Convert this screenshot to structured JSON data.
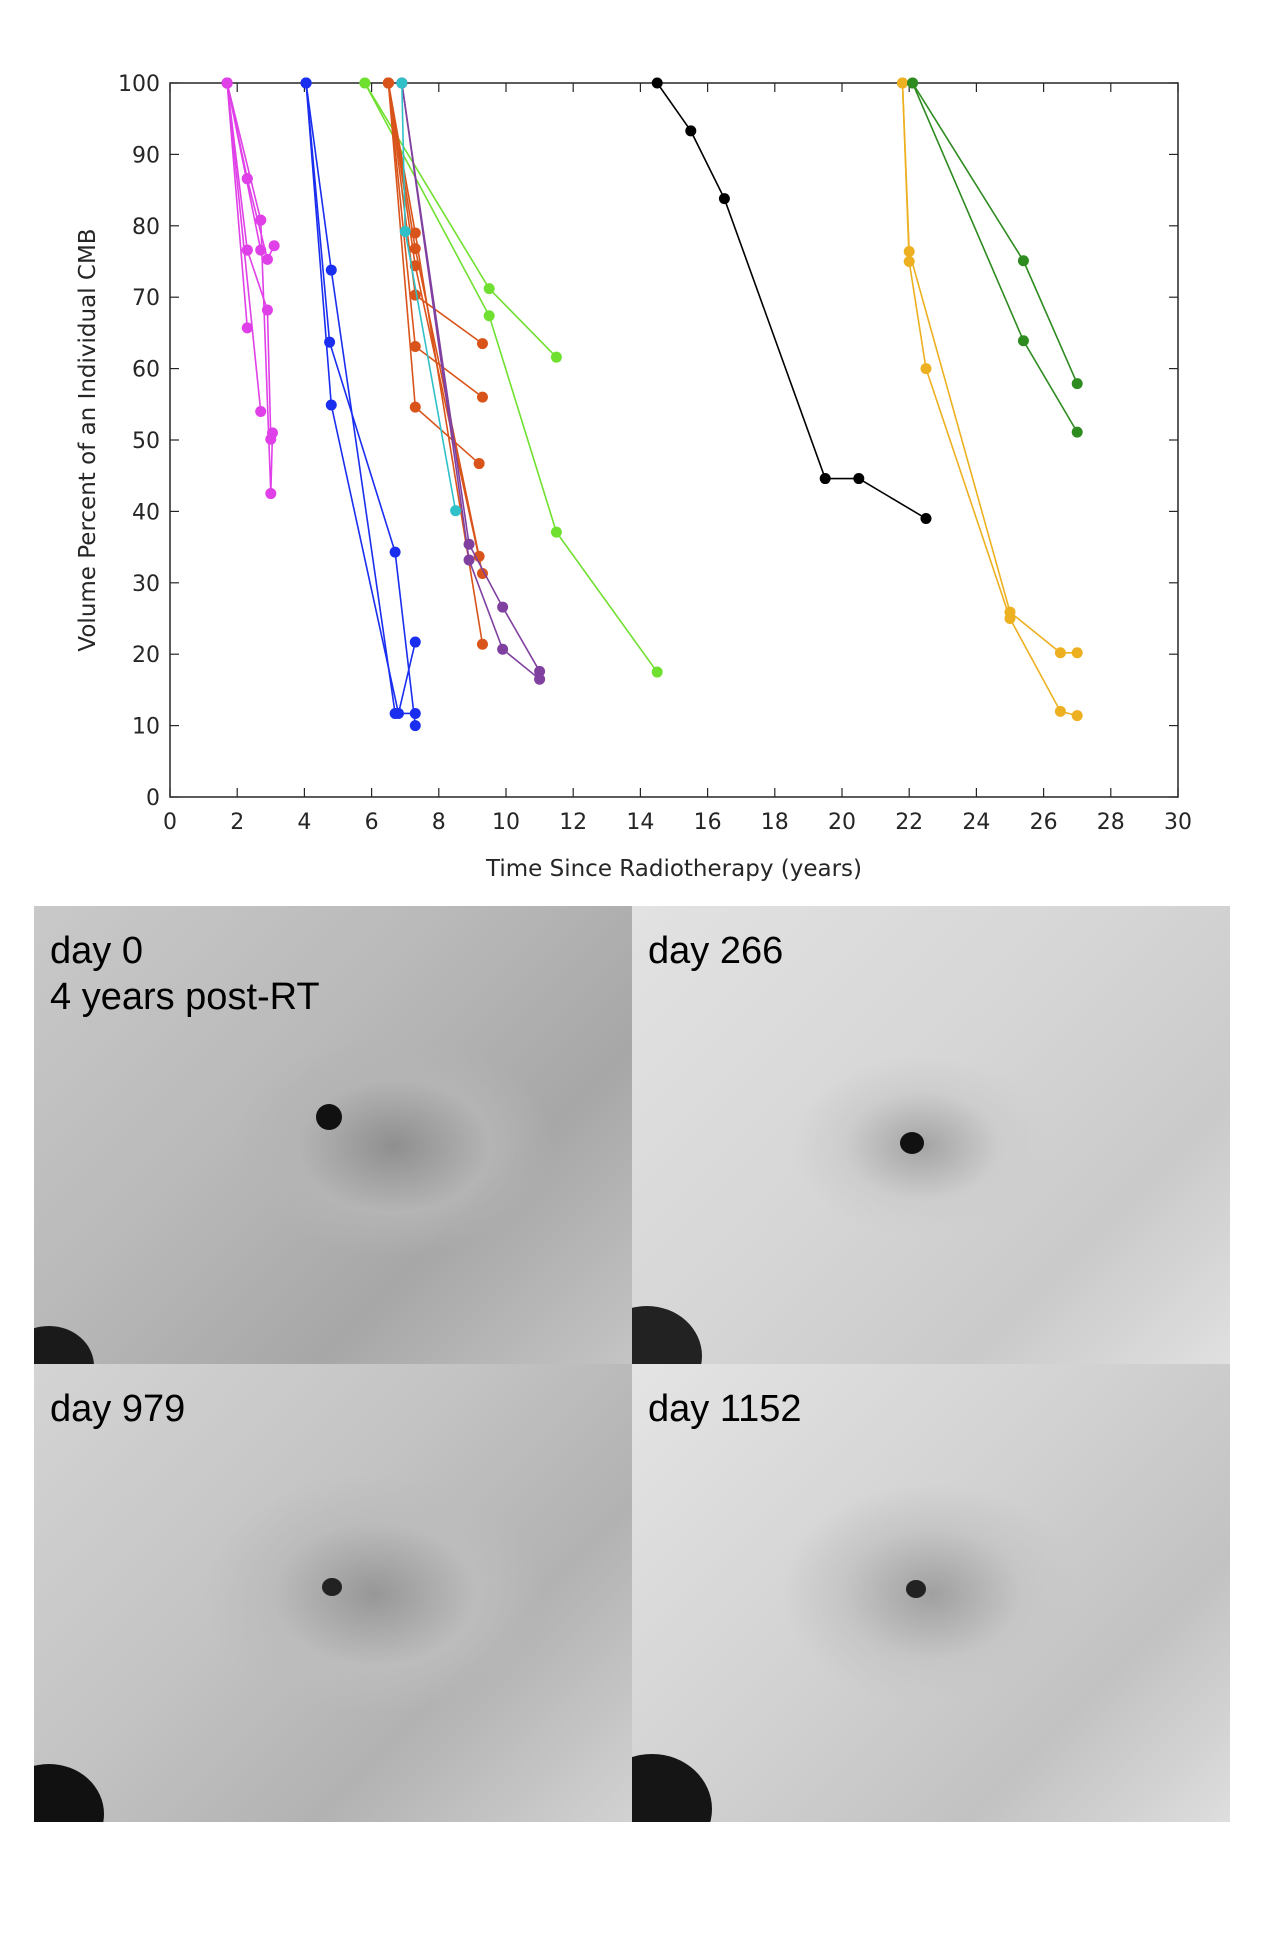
{
  "chart_data": {
    "type": "line",
    "title": "",
    "xlabel": "Time Since Radiotherapy (years)",
    "ylabel": "Volume Percent of an Individual CMB",
    "xlim": [
      0,
      30
    ],
    "ylim": [
      0,
      100
    ],
    "xticks": [
      0,
      2,
      4,
      6,
      8,
      10,
      12,
      14,
      16,
      18,
      20,
      22,
      24,
      26,
      28,
      30
    ],
    "yticks": [
      0,
      10,
      20,
      30,
      40,
      50,
      60,
      70,
      80,
      90,
      100
    ],
    "grid": false,
    "legend": "none",
    "series": [
      {
        "color": "#e040e8",
        "x": [
          1.7,
          2.3
        ],
        "y": [
          100,
          86.6
        ]
      },
      {
        "color": "#e040e8",
        "x": [
          1.7,
          2.3
        ],
        "y": [
          100,
          76.6
        ]
      },
      {
        "color": "#e040e8",
        "x": [
          1.7,
          2.3
        ],
        "y": [
          100,
          65.7
        ]
      },
      {
        "color": "#e040e8",
        "x": [
          1.7,
          2.7
        ],
        "y": [
          100,
          80.8
        ]
      },
      {
        "color": "#e040e8",
        "x": [
          1.7,
          2.7
        ],
        "y": [
          100,
          76.6
        ]
      },
      {
        "color": "#e040e8",
        "x": [
          1.7,
          2.7
        ],
        "y": [
          100,
          54.0
        ]
      },
      {
        "color": "#e040e8",
        "x": [
          2.3,
          2.9,
          3.1
        ],
        "y": [
          86.6,
          75.3,
          77.2
        ]
      },
      {
        "color": "#e040e8",
        "x": [
          2.3,
          2.9,
          3.0
        ],
        "y": [
          76.6,
          68.2,
          50.1
        ]
      },
      {
        "color": "#e040e8",
        "x": [
          2.7,
          3.0,
          3.05
        ],
        "y": [
          80.8,
          42.5,
          51.0
        ]
      },
      {
        "color": "#1a2ef0",
        "x": [
          4.05,
          4.8,
          6.7,
          7.3
        ],
        "y": [
          100,
          73.8,
          11.7,
          11.7
        ]
      },
      {
        "color": "#1a2ef0",
        "x": [
          4.05,
          4.75,
          6.7,
          7.3
        ],
        "y": [
          100,
          63.7,
          34.3,
          10.0
        ]
      },
      {
        "color": "#1a2ef0",
        "x": [
          4.05,
          4.8,
          6.8,
          7.3
        ],
        "y": [
          100,
          54.9,
          11.7,
          21.7
        ]
      },
      {
        "color": "#70e030",
        "x": [
          5.8,
          9.5,
          11.5
        ],
        "y": [
          100,
          71.2,
          61.6
        ]
      },
      {
        "color": "#70e030",
        "x": [
          5.8,
          9.5,
          11.5,
          14.5
        ],
        "y": [
          100,
          67.4,
          37.1,
          17.5
        ]
      },
      {
        "color": "#d9541a",
        "x": [
          6.5,
          7.3,
          9.3
        ],
        "y": [
          100,
          79.0,
          21.4
        ]
      },
      {
        "color": "#d9541a",
        "x": [
          6.5,
          7.3,
          9.2
        ],
        "y": [
          100,
          76.8,
          33.7
        ]
      },
      {
        "color": "#d9541a",
        "x": [
          6.5,
          7.3,
          9.3
        ],
        "y": [
          100,
          74.4,
          31.3
        ]
      },
      {
        "color": "#d9541a",
        "x": [
          6.5,
          7.3,
          9.3
        ],
        "y": [
          100,
          70.3,
          63.5
        ]
      },
      {
        "color": "#d9541a",
        "x": [
          6.5,
          7.3,
          9.3
        ],
        "y": [
          100,
          63.1,
          56.0
        ]
      },
      {
        "color": "#d9541a",
        "x": [
          6.5,
          7.3,
          9.2
        ],
        "y": [
          100,
          54.6,
          46.7
        ]
      },
      {
        "color": "#8040a0",
        "x": [
          6.9,
          8.9,
          9.9,
          11.0
        ],
        "y": [
          100,
          35.4,
          26.6,
          17.6
        ]
      },
      {
        "color": "#8040a0",
        "x": [
          6.9,
          8.9,
          9.9,
          11.0
        ],
        "y": [
          100,
          33.2,
          20.7,
          16.5
        ]
      },
      {
        "color": "#30c0c8",
        "x": [
          6.9,
          7.0,
          8.5
        ],
        "y": [
          100,
          79.2,
          40.1
        ]
      },
      {
        "color": "#000000",
        "x": [
          14.5,
          15.5,
          16.5,
          19.5,
          20.5,
          22.5
        ],
        "y": [
          100,
          93.3,
          83.8,
          44.6,
          44.6,
          39.0
        ]
      },
      {
        "color": "#edb020",
        "x": [
          21.8,
          22.0,
          25.0,
          26.5,
          27.0
        ],
        "y": [
          100,
          76.4,
          25.9,
          20.2,
          20.2
        ]
      },
      {
        "color": "#edb020",
        "x": [
          21.8,
          22.0,
          22.5,
          25.0,
          26.5,
          27.0
        ],
        "y": [
          100,
          75.0,
          60.0,
          25.0,
          12.0,
          11.4
        ]
      },
      {
        "color": "#2e8b20",
        "x": [
          22.1,
          25.4,
          27.0
        ],
        "y": [
          100,
          75.1,
          57.9
        ]
      },
      {
        "color": "#2e8b20",
        "x": [
          22.1,
          25.4,
          27.0
        ],
        "y": [
          100,
          63.9,
          51.1
        ]
      }
    ]
  },
  "panels": [
    {
      "label": "day 0\n4 years post-RT"
    },
    {
      "label": "day 266"
    },
    {
      "label": "day 979"
    },
    {
      "label": "day 1152"
    }
  ]
}
